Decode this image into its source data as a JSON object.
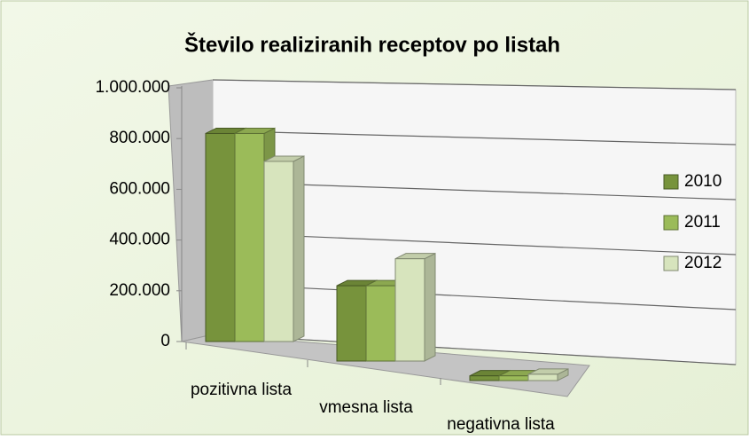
{
  "chart_data": {
    "type": "bar3d",
    "title": "Število realiziranih receptov po listah",
    "categories": [
      "pozitivna lista",
      "vmesna lista",
      "negativna lista"
    ],
    "series": [
      {
        "name": "2010",
        "color": "#77933c",
        "values": [
          820000,
          265000,
          15000
        ]
      },
      {
        "name": "2011",
        "color": "#9bbb59",
        "values": [
          820000,
          265000,
          15000
        ]
      },
      {
        "name": "2012",
        "color": "#d7e4bd",
        "values": [
          710000,
          360000,
          20000
        ]
      }
    ],
    "ylim": [
      0,
      1000000
    ],
    "yticks": [
      0,
      {
        "value": 200000,
        "label": "200.000"
      },
      {
        "value": 400000,
        "label": "400.000"
      },
      {
        "value": 600000,
        "label": "600.000"
      },
      {
        "value": 800000,
        "label": "800.000"
      },
      {
        "value": 1000000,
        "label": "1.000.000"
      }
    ],
    "grid": true,
    "legend": "right"
  }
}
